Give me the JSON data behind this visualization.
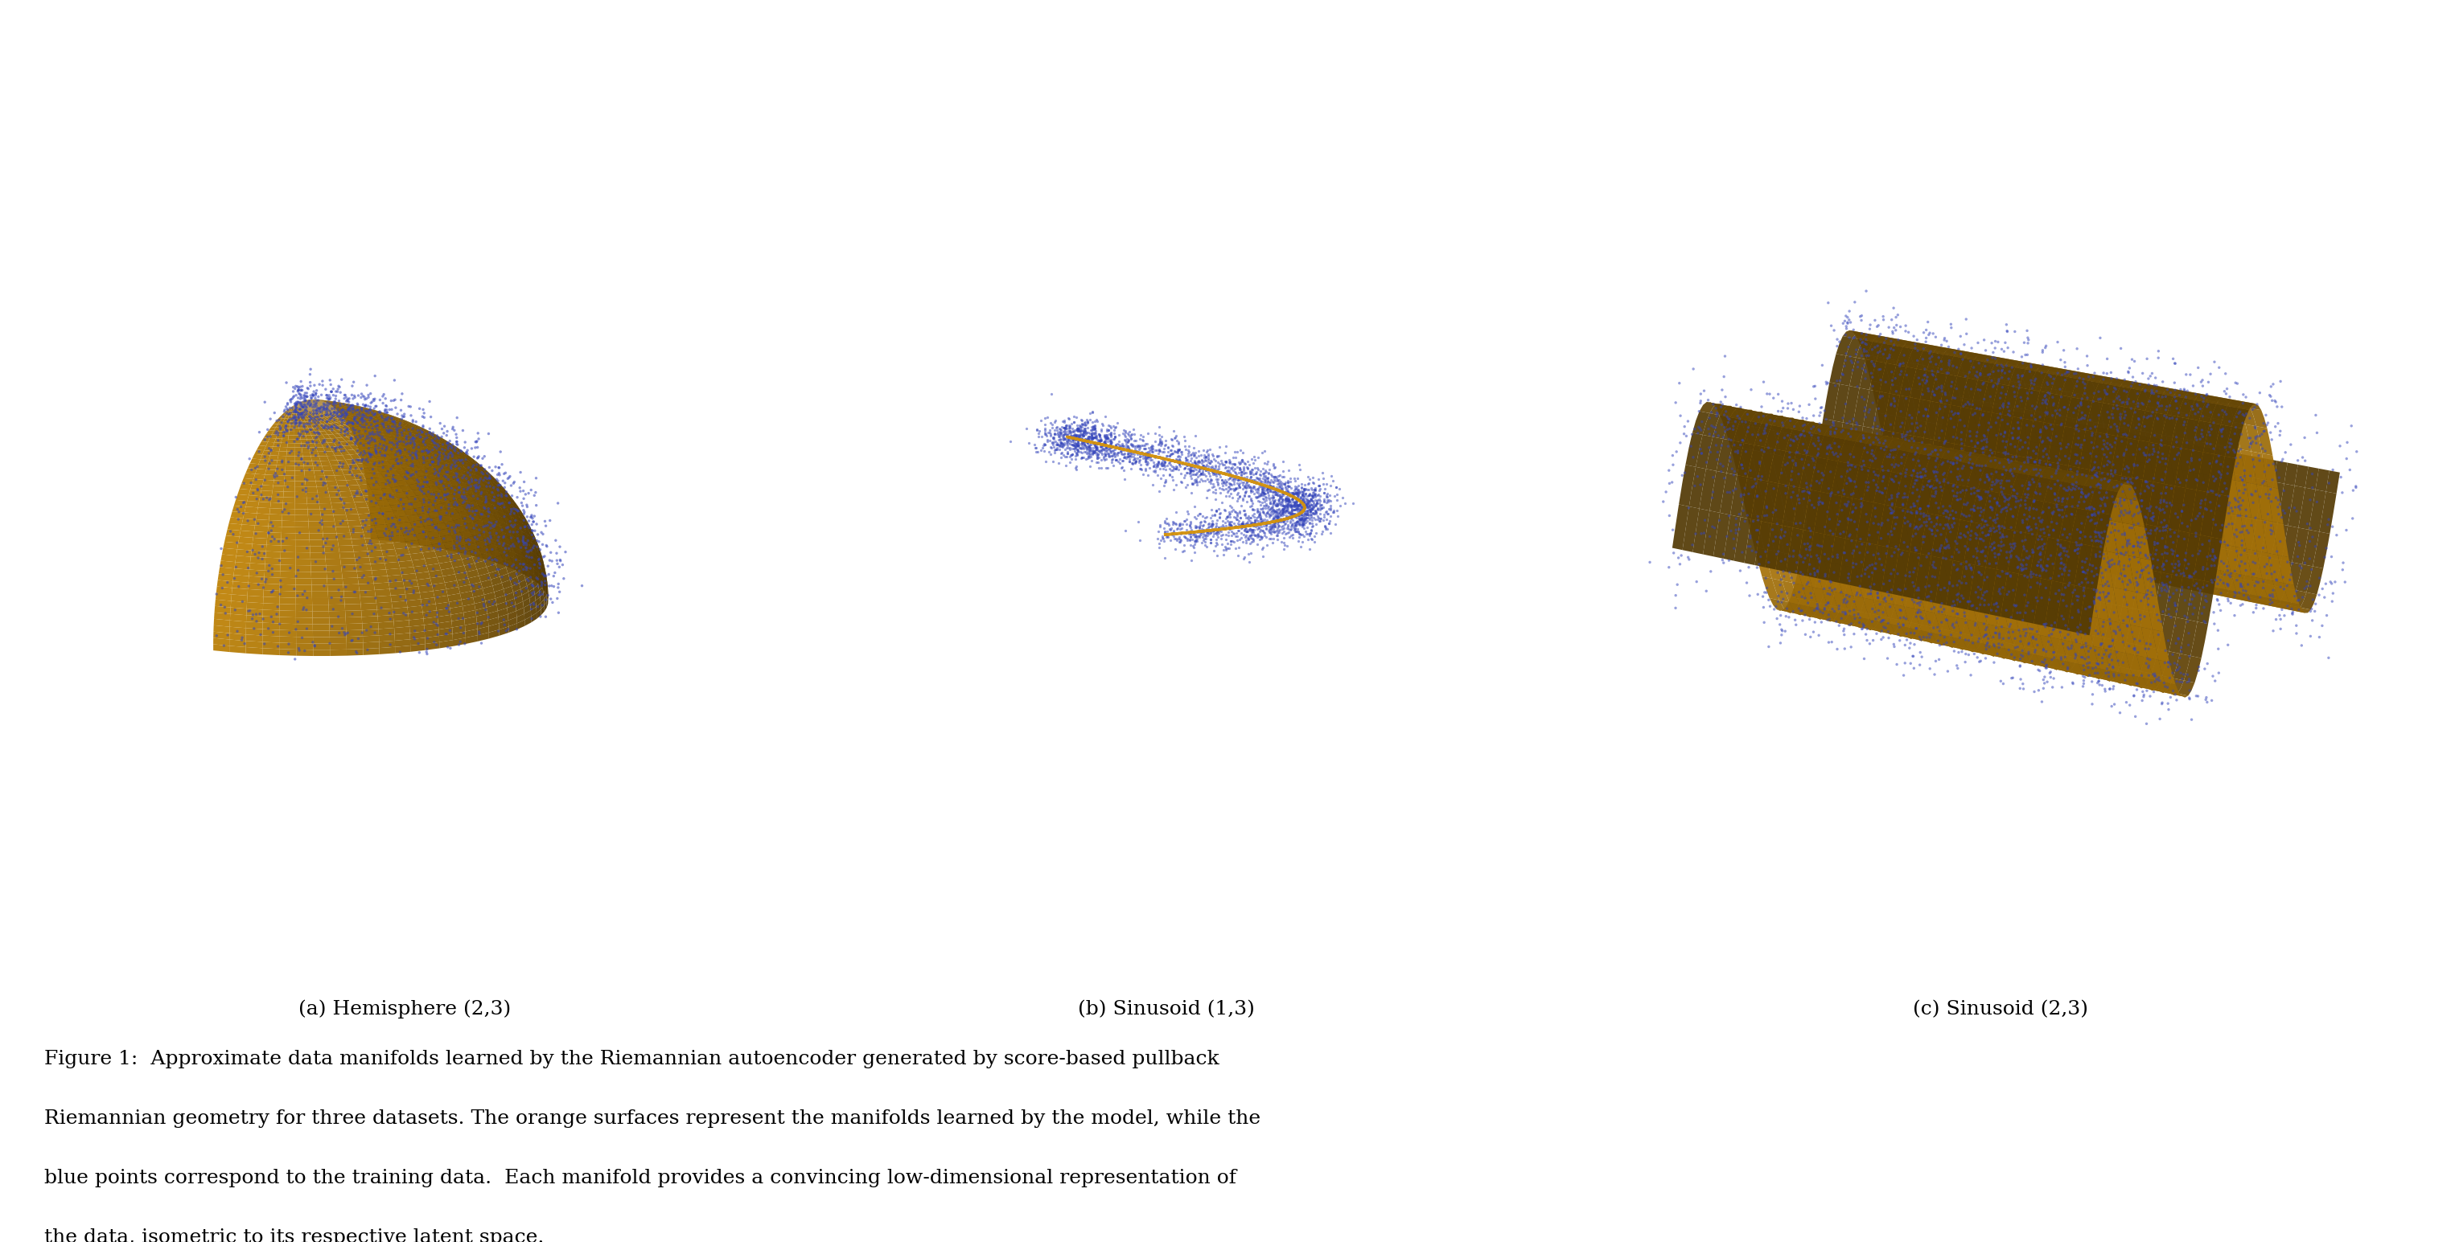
{
  "surface_color": "#D4920A",
  "point_color": "#3344BB",
  "point_alpha": 0.55,
  "point_size": 6,
  "background_color": "#ffffff",
  "caption_a": "(a) Hemisphere (2,3)",
  "caption_b": "(b) Sinusoid (1,3)",
  "caption_c": "(c) Sinusoid (2,3)",
  "figure_caption_line1": "Figure 1:  Approximate data manifolds learned by the Riemannian autoencoder generated by score-based pullback",
  "figure_caption_line2": "Riemannian geometry for three datasets. The orange surfaces represent the manifolds learned by the model, while the",
  "figure_caption_line3": "blue points correspond to the training data.  Each manifold provides a convincing low-dimensional representation of",
  "figure_caption_line4": "the data, isometric to its respective latent space.",
  "caption_fontsize": 18,
  "subcaption_fontsize": 18
}
